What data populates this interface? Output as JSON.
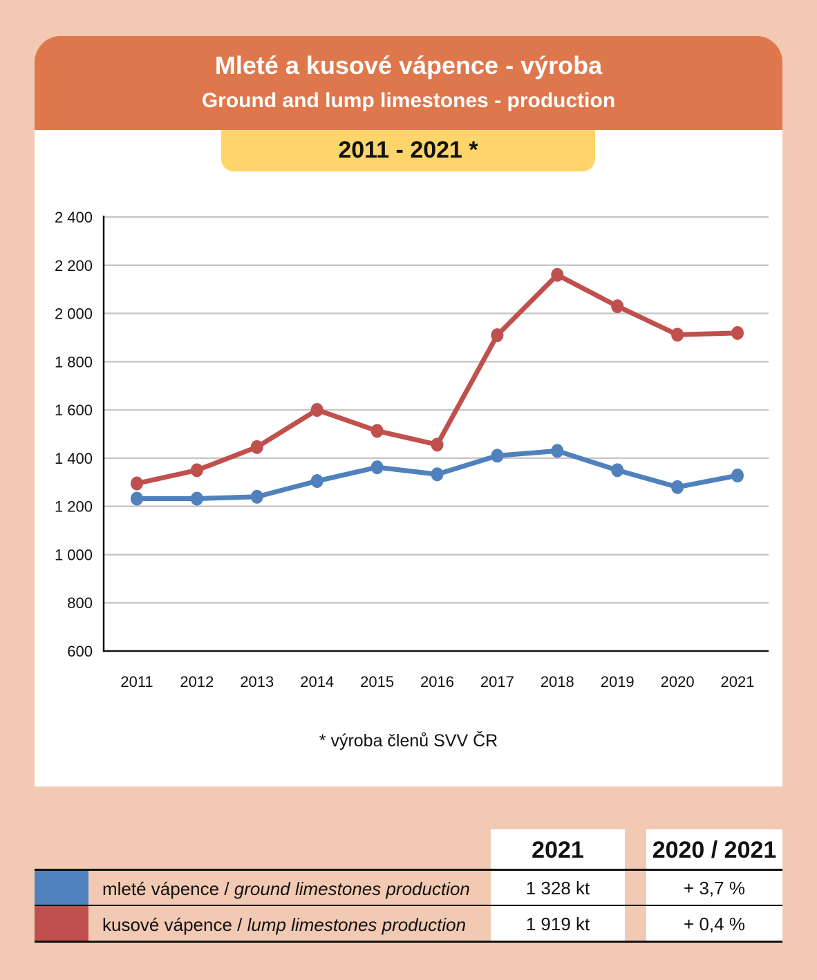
{
  "header": {
    "title_cz": "Mleté a kusové vápence - výroba",
    "title_en": "Ground and lump limestones - production",
    "period": "2011 - 2021 *"
  },
  "footnote": "* výroba členů SVV ČR",
  "chart_data": {
    "type": "line",
    "categories": [
      "2011",
      "2012",
      "2013",
      "2014",
      "2015",
      "2016",
      "2017",
      "2018",
      "2019",
      "2020",
      "2021"
    ],
    "ylim": [
      600,
      2400
    ],
    "yticks": [
      600,
      800,
      1000,
      1200,
      1400,
      1600,
      1800,
      2000,
      2200,
      2400
    ],
    "ytick_labels": [
      "600",
      "800",
      "1 000",
      "1 200",
      "1 400",
      "1 600",
      "1 800",
      "2 000",
      "2 200",
      "2 400"
    ],
    "grid": true,
    "series": [
      {
        "name": "mleté vápence / ground limestones production",
        "color": "#4f81bd",
        "values": [
          1232,
          1232,
          1240,
          1305,
          1362,
          1333,
          1410,
          1430,
          1350,
          1280,
          1328
        ]
      },
      {
        "name": "kusové vápence / lump limestones production",
        "color": "#c0504d",
        "values": [
          1295,
          1350,
          1446,
          1600,
          1513,
          1456,
          1910,
          2160,
          2030,
          1912,
          1919
        ]
      }
    ]
  },
  "legend_table": {
    "col_year": "2021",
    "col_change": "2020 / 2021",
    "rows": [
      {
        "label_cz": "mleté vápence / ",
        "label_en": "ground limestones production",
        "value": "1 328 kt",
        "change": "+ 3,7 %",
        "color": "#4f81bd"
      },
      {
        "label_cz": "kusové vápence / ",
        "label_en": "lump limestones production",
        "value": "1 919 kt",
        "change": "+ 0,4 %",
        "color": "#c0504d"
      }
    ]
  }
}
